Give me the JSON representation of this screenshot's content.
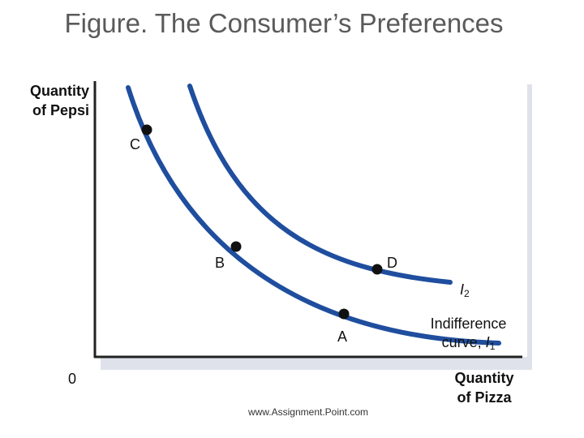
{
  "title": "Figure. The Consumer’s Preferences",
  "axes": {
    "y_label_line1": "Quantity",
    "y_label_line2": "of Pepsi",
    "x_label_line1": "Quantity",
    "x_label_line2": "of Pizza",
    "origin_label": "0"
  },
  "points": {
    "A": "A",
    "B": "B",
    "C": "C",
    "D": "D"
  },
  "curves": {
    "i2_symbol": "I",
    "i2_subscript": "2",
    "i1_line1": "Indifference",
    "i1_line2_prefix": "curve,",
    "i1_symbol": "I",
    "i1_subscript": "1"
  },
  "footer": "www.Assignment.Point.com",
  "colors": {
    "curve": "#1f4e9e",
    "axis": "#222222",
    "point": "#111111",
    "shadow": "#dfe2ea",
    "title": "#5a5a5a"
  }
}
